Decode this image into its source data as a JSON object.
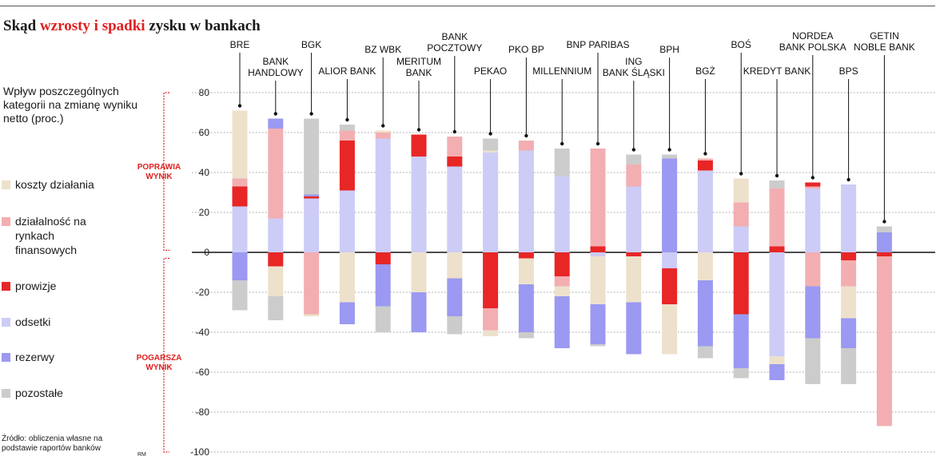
{
  "title": {
    "prefix": "Skąd",
    "highlight": "wzrosty i spadki",
    "suffix": "zysku w bankach"
  },
  "description": "Wpływ poszczególnych kategorii na zmianę wyniku netto (proc.)",
  "legend": [
    {
      "label": "koszty działania",
      "color": "#ede1cc"
    },
    {
      "label": "działalność na rynkach finansowych",
      "color": "#f3aeb1"
    },
    {
      "label": "prowizje",
      "color": "#e82626"
    },
    {
      "label": "odsetki",
      "color": "#ccccf7"
    },
    {
      "label": "rezerwy",
      "color": "#9b99f1"
    },
    {
      "label": "pozostałe",
      "color": "#cccccc"
    }
  ],
  "side_labels": {
    "positive": "POPRAWIA WYNIK",
    "negative": "POGARSZA WYNIK"
  },
  "source": {
    "text": "Źródło: obliczenia własne na podstawie raportów banków",
    "author": "RM"
  },
  "chart_data": {
    "type": "bar",
    "stacked": true,
    "title": "Skąd wzrosty i spadki zysku w bankach",
    "ylabel": "Wpływ poszczególnych kategorii na zmianę wyniku netto (proc.)",
    "ylim": [
      -100,
      80
    ],
    "yticks": [
      80,
      60,
      40,
      20,
      0,
      -20,
      -40,
      -60,
      -80,
      -100
    ],
    "categories": [
      "BRE",
      "BANK HANDLOWY",
      "BGK",
      "ALIOR BANK",
      "BZ WBK",
      "MERITUM BANK",
      "BANK POCZTOWY",
      "PEKAO",
      "PKO BP",
      "MILLENNIUM",
      "BNP PARIBAS",
      "ING BANK ŚLĄSKI",
      "BPH",
      "BGŻ",
      "BOŚ",
      "KREDYT BANK",
      "NORDEA BANK POLSKA",
      "BPS",
      "GETIN NOBLE BANK"
    ],
    "bars": [
      {
        "bank": "BRE",
        "segments": [
          {
            "cat": "odsetki",
            "value": 23
          },
          {
            "cat": "prowizje",
            "value": 10
          },
          {
            "cat": "działalność na rynkach finansowych",
            "value": 4
          },
          {
            "cat": "koszty działania",
            "value": 34
          },
          {
            "cat": "rezerwy",
            "value": -14
          },
          {
            "cat": "pozostałe",
            "value": -15
          }
        ]
      },
      {
        "bank": "BANK HANDLOWY",
        "segments": [
          {
            "cat": "odsetki",
            "value": 17
          },
          {
            "cat": "działalność na rynkach finansowych",
            "value": 45
          },
          {
            "cat": "rezerwy",
            "value": 5
          },
          {
            "cat": "prowizje",
            "value": -7
          },
          {
            "cat": "koszty działania",
            "value": -15
          },
          {
            "cat": "pozostałe",
            "value": -12
          }
        ]
      },
      {
        "bank": "BGK",
        "segments": [
          {
            "cat": "odsetki",
            "value": 27
          },
          {
            "cat": "prowizje",
            "value": 1
          },
          {
            "cat": "rezerwy",
            "value": 1
          },
          {
            "cat": "pozostałe",
            "value": 38
          },
          {
            "cat": "działalność na rynkach finansowych",
            "value": -31
          },
          {
            "cat": "koszty działania",
            "value": -1
          }
        ]
      },
      {
        "bank": "ALIOR BANK",
        "segments": [
          {
            "cat": "odsetki",
            "value": 31
          },
          {
            "cat": "prowizje",
            "value": 25
          },
          {
            "cat": "działalność na rynkach finansowych",
            "value": 5
          },
          {
            "cat": "pozostałe",
            "value": 3
          },
          {
            "cat": "koszty działania",
            "value": -25
          },
          {
            "cat": "rezerwy",
            "value": -11
          }
        ]
      },
      {
        "bank": "BZ WBK",
        "segments": [
          {
            "cat": "odsetki",
            "value": 57
          },
          {
            "cat": "działalność na rynkach finansowych",
            "value": 3
          },
          {
            "cat": "koszty działania",
            "value": 1
          },
          {
            "cat": "prowizje",
            "value": -6
          },
          {
            "cat": "rezerwy",
            "value": -21
          },
          {
            "cat": "pozostałe",
            "value": -13
          }
        ]
      },
      {
        "bank": "MERITUM BANK",
        "segments": [
          {
            "cat": "odsetki",
            "value": 48
          },
          {
            "cat": "prowizje",
            "value": 11
          },
          {
            "cat": "koszty działania",
            "value": -20
          },
          {
            "cat": "rezerwy",
            "value": -20
          }
        ]
      },
      {
        "bank": "BANK POCZTOWY",
        "segments": [
          {
            "cat": "odsetki",
            "value": 43
          },
          {
            "cat": "prowizje",
            "value": 5
          },
          {
            "cat": "działalność na rynkach finansowych",
            "value": 10
          },
          {
            "cat": "koszty działania",
            "value": -13
          },
          {
            "cat": "rezerwy",
            "value": -19
          },
          {
            "cat": "pozostałe",
            "value": -9
          }
        ]
      },
      {
        "bank": "PEKAO",
        "segments": [
          {
            "cat": "odsetki",
            "value": 50
          },
          {
            "cat": "koszty działania",
            "value": 1
          },
          {
            "cat": "pozostałe",
            "value": 6
          },
          {
            "cat": "prowizje",
            "value": -28
          },
          {
            "cat": "działalność na rynkach finansowych",
            "value": -11
          },
          {
            "cat": "koszty działania",
            "value": -3
          }
        ]
      },
      {
        "bank": "PKO BP",
        "segments": [
          {
            "cat": "odsetki",
            "value": 51
          },
          {
            "cat": "działalność na rynkach finansowych",
            "value": 5
          },
          {
            "cat": "prowizje",
            "value": -3
          },
          {
            "cat": "koszty działania",
            "value": -13
          },
          {
            "cat": "rezerwy",
            "value": -24
          },
          {
            "cat": "pozostałe",
            "value": -3
          }
        ]
      },
      {
        "bank": "MILLENNIUM",
        "segments": [
          {
            "cat": "odsetki",
            "value": 38
          },
          {
            "cat": "pozostałe",
            "value": 14
          },
          {
            "cat": "prowizje",
            "value": -12
          },
          {
            "cat": "działalność na rynkach finansowych",
            "value": -5
          },
          {
            "cat": "koszty działania",
            "value": -5
          },
          {
            "cat": "rezerwy",
            "value": -26
          }
        ]
      },
      {
        "bank": "BNP PARIBAS",
        "segments": [
          {
            "cat": "prowizje",
            "value": 3
          },
          {
            "cat": "działalność na rynkach finansowych",
            "value": 49
          },
          {
            "cat": "odsetki",
            "value": -2
          },
          {
            "cat": "koszty działania",
            "value": -24
          },
          {
            "cat": "rezerwy",
            "value": -20
          },
          {
            "cat": "pozostałe",
            "value": -1
          }
        ]
      },
      {
        "bank": "ING BANK ŚLĄSKI",
        "segments": [
          {
            "cat": "odsetki",
            "value": 33
          },
          {
            "cat": "działalność na rynkach finansowych",
            "value": 11
          },
          {
            "cat": "pozostałe",
            "value": 5
          },
          {
            "cat": "prowizje",
            "value": -2
          },
          {
            "cat": "koszty działania",
            "value": -23
          },
          {
            "cat": "rezerwy",
            "value": -26
          }
        ]
      },
      {
        "bank": "BPH",
        "segments": [
          {
            "cat": "rezerwy",
            "value": 47
          },
          {
            "cat": "pozostałe",
            "value": 2
          },
          {
            "cat": "odsetki",
            "value": -8
          },
          {
            "cat": "prowizje",
            "value": -18
          },
          {
            "cat": "koszty działania",
            "value": -25
          }
        ]
      },
      {
        "bank": "BGŻ",
        "segments": [
          {
            "cat": "odsetki",
            "value": 41
          },
          {
            "cat": "prowizje",
            "value": 5
          },
          {
            "cat": "działalność na rynkach finansowych",
            "value": 1
          },
          {
            "cat": "koszty działania",
            "value": -14
          },
          {
            "cat": "rezerwy",
            "value": -33
          },
          {
            "cat": "pozostałe",
            "value": -6
          }
        ]
      },
      {
        "bank": "BOŚ",
        "segments": [
          {
            "cat": "odsetki",
            "value": 13
          },
          {
            "cat": "działalność na rynkach finansowych",
            "value": 12
          },
          {
            "cat": "koszty działania",
            "value": 12
          },
          {
            "cat": "prowizje",
            "value": -31
          },
          {
            "cat": "rezerwy",
            "value": -27
          },
          {
            "cat": "pozostałe",
            "value": -5
          }
        ]
      },
      {
        "bank": "KREDYT BANK",
        "segments": [
          {
            "cat": "prowizje",
            "value": 3
          },
          {
            "cat": "działalność na rynkach finansowych",
            "value": 29
          },
          {
            "cat": "pozostałe",
            "value": 4
          },
          {
            "cat": "odsetki",
            "value": -52
          },
          {
            "cat": "koszty działania",
            "value": -4
          },
          {
            "cat": "rezerwy",
            "value": -8
          }
        ]
      },
      {
        "bank": "NORDEA BANK POLSKA",
        "segments": [
          {
            "cat": "odsetki",
            "value": 32
          },
          {
            "cat": "działalność na rynkach finansowych",
            "value": 1
          },
          {
            "cat": "prowizje",
            "value": 2
          },
          {
            "cat": "działalność na rynkach finansowych",
            "value": -17
          },
          {
            "cat": "rezerwy",
            "value": -26
          },
          {
            "cat": "pozostałe",
            "value": -23
          }
        ]
      },
      {
        "bank": "BPS",
        "segments": [
          {
            "cat": "odsetki",
            "value": 34
          },
          {
            "cat": "prowizje",
            "value": -4
          },
          {
            "cat": "działalność na rynkach finansowych",
            "value": -13
          },
          {
            "cat": "koszty działania",
            "value": -16
          },
          {
            "cat": "rezerwy",
            "value": -15
          },
          {
            "cat": "pozostałe",
            "value": -18
          }
        ]
      },
      {
        "bank": "GETIN NOBLE BANK",
        "segments": [
          {
            "cat": "rezerwy",
            "value": 10
          },
          {
            "cat": "pozostałe",
            "value": 3
          },
          {
            "cat": "prowizje",
            "value": -2
          },
          {
            "cat": "działalność na rynkach finansowych",
            "value": -85
          }
        ]
      }
    ]
  }
}
